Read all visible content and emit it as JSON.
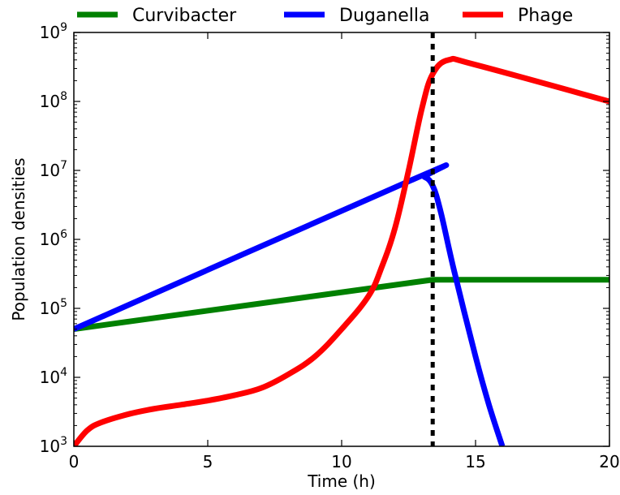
{
  "chart_data": {
    "type": "line",
    "title": "",
    "xlabel": "Time (h)",
    "ylabel": "Population densities",
    "xlim": [
      0,
      20
    ],
    "ylim": [
      1000,
      1000000000
    ],
    "yscale": "log",
    "grid": false,
    "legend_position": "top",
    "x_ticks": [
      0,
      5,
      10,
      15,
      20
    ],
    "y_ticks": [
      {
        "base": "10",
        "exp": "3"
      },
      {
        "base": "10",
        "exp": "4"
      },
      {
        "base": "10",
        "exp": "5"
      },
      {
        "base": "10",
        "exp": "6"
      },
      {
        "base": "10",
        "exp": "7"
      },
      {
        "base": "10",
        "exp": "8"
      },
      {
        "base": "10",
        "exp": "9"
      }
    ],
    "vline": {
      "x": 13.4,
      "style": "dotted",
      "color": "#000000"
    },
    "series": [
      {
        "name": "Curvibacter",
        "color": "#008000",
        "points": [
          [
            0,
            50000
          ],
          [
            13.4,
            260000
          ],
          [
            20,
            260000
          ]
        ]
      },
      {
        "name": "Duganella",
        "color": "#0000ff",
        "points": [
          [
            0,
            50000
          ],
          [
            12.8,
            7800000
          ],
          [
            13.1,
            8000000
          ],
          [
            13.4,
            6000000
          ],
          [
            13.7,
            2500000
          ],
          [
            14.2,
            350000
          ],
          [
            15.0,
            20000
          ],
          [
            15.5,
            4000
          ],
          [
            16.0,
            1000
          ]
        ]
      },
      {
        "name": "Phage",
        "color": "#ff0000",
        "points": [
          [
            0,
            1000
          ],
          [
            0.5,
            1700
          ],
          [
            1,
            2200
          ],
          [
            2,
            2900
          ],
          [
            3,
            3500
          ],
          [
            4,
            4000
          ],
          [
            5,
            4600
          ],
          [
            6,
            5500
          ],
          [
            7,
            7000
          ],
          [
            8,
            11000
          ],
          [
            9,
            20000
          ],
          [
            10,
            50000
          ],
          [
            11,
            150000
          ],
          [
            11.5,
            400000
          ],
          [
            12,
            1500000
          ],
          [
            12.5,
            10000000
          ],
          [
            13,
            80000000
          ],
          [
            13.4,
            250000000
          ],
          [
            14,
            400000000
          ],
          [
            15,
            340000000
          ],
          [
            20,
            100000000
          ]
        ]
      }
    ]
  }
}
